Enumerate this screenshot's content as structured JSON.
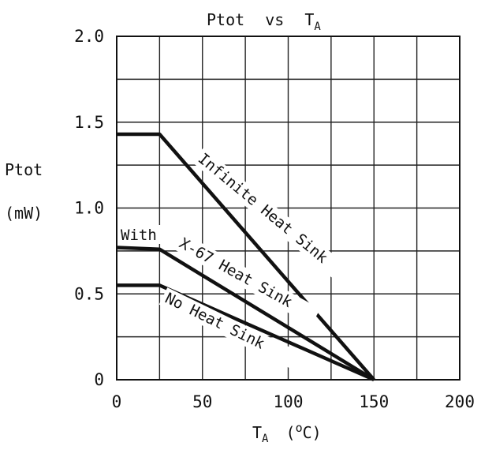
{
  "chart_data": {
    "type": "line",
    "title": "Ptot vs TA",
    "title_parts": {
      "left": "Ptot",
      "mid": "vs",
      "right_main": "T",
      "right_sub": "A"
    },
    "xlabel": "TA (°C)",
    "xlabel_parts": {
      "main": "T",
      "sub": "A",
      "unit_open": "(",
      "unit_deg": "o",
      "unit_c": "C",
      "unit_close": ")"
    },
    "ylabel": "Ptot (mW)",
    "ylabel_parts": {
      "line1": "Ptot",
      "line2": "(mW)"
    },
    "xlim": [
      0,
      200
    ],
    "ylim": [
      0,
      2.0
    ],
    "x_ticks": [
      0,
      50,
      100,
      150,
      200
    ],
    "x_tick_labels": [
      "0",
      "50",
      "100",
      "150",
      "200"
    ],
    "y_ticks": [
      0,
      0.5,
      1.0,
      1.5,
      2.0
    ],
    "y_tick_labels": [
      "0",
      "0.5",
      "1.0",
      "1.5",
      "2.0"
    ],
    "x_grid_step": 25,
    "y_grid_step": 0.25,
    "grid": true,
    "series": [
      {
        "name": "Infinite Heat Sink",
        "x": [
          0,
          25,
          150
        ],
        "y": [
          1.43,
          1.43,
          0
        ]
      },
      {
        "name": "With X-67 Heat Sink",
        "x": [
          0,
          25,
          150
        ],
        "y": [
          0.77,
          0.76,
          0
        ]
      },
      {
        "name": "No Heat Sink",
        "x": [
          0,
          25,
          150
        ],
        "y": [
          0.55,
          0.55,
          0
        ]
      }
    ],
    "line_color": "#111111"
  }
}
